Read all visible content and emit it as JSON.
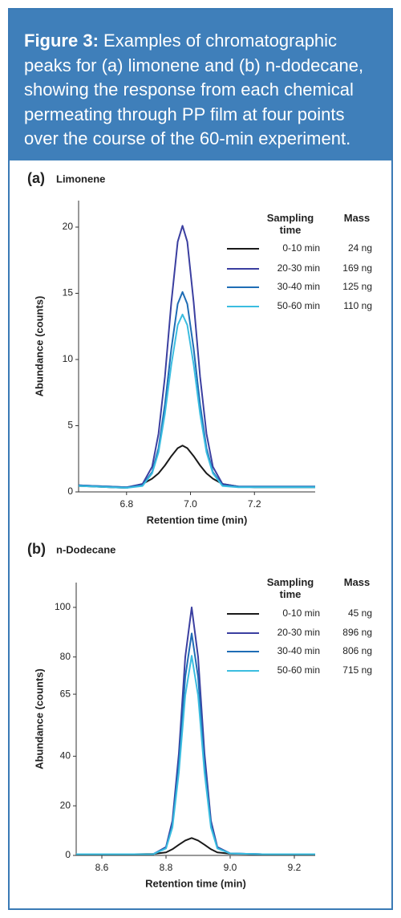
{
  "figure": {
    "label": "Figure 3:",
    "caption": "Examples of chromatographic peaks for (a) limonene and (b) n-dodecane, showing the response from each chemical permeating through PP film at four points over the course of the 60-min experiment."
  },
  "chart_data": [
    {
      "type": "line",
      "panel": "(a)",
      "title": "Limonene",
      "xlabel": "Retention time (min)",
      "ylabel": "Abundance (counts)",
      "legend_headers": [
        "Sampling time",
        "Mass"
      ],
      "x": [
        6.65,
        6.7,
        6.75,
        6.8,
        6.85,
        6.88,
        6.9,
        6.92,
        6.94,
        6.96,
        6.975,
        6.99,
        7.01,
        7.03,
        7.05,
        7.07,
        7.1,
        7.15,
        7.2,
        7.3,
        7.39
      ],
      "xlim": [
        6.65,
        7.39
      ],
      "xticks": [
        6.8,
        {
          "value": 7,
          "label": "7.0"
        },
        7.2
      ],
      "ylim": [
        0,
        22
      ],
      "yticks": [
        0,
        5,
        10,
        15,
        20
      ],
      "series": [
        {
          "name": "0-10 min",
          "mass": "24 ng",
          "color": "#1a1a1a",
          "values": [
            0.45,
            0.4,
            0.35,
            0.3,
            0.6,
            1.0,
            1.4,
            2.0,
            2.7,
            3.3,
            3.5,
            3.3,
            2.7,
            2.0,
            1.4,
            1.0,
            0.6,
            0.4,
            0.35,
            0.35,
            0.35
          ]
        },
        {
          "name": "20-30 min",
          "mass": "169 ng",
          "color": "#3b3fa0",
          "values": [
            0.5,
            0.45,
            0.4,
            0.35,
            0.6,
            1.9,
            4.4,
            8.7,
            14.3,
            18.9,
            20.1,
            18.9,
            14.3,
            8.7,
            4.4,
            1.9,
            0.6,
            0.4,
            0.4,
            0.4,
            0.4
          ]
        },
        {
          "name": "30-40 min",
          "mass": "125 ng",
          "color": "#1f6db5",
          "values": [
            0.5,
            0.45,
            0.4,
            0.35,
            0.5,
            1.5,
            3.3,
            6.6,
            10.8,
            14.2,
            15.1,
            14.2,
            10.8,
            6.6,
            3.3,
            1.5,
            0.5,
            0.4,
            0.4,
            0.4,
            0.4
          ]
        },
        {
          "name": "50-60 min",
          "mass": "110 ng",
          "color": "#3bbde0",
          "values": [
            0.45,
            0.4,
            0.35,
            0.3,
            0.45,
            1.4,
            3.0,
            5.9,
            9.6,
            12.6,
            13.4,
            12.6,
            9.6,
            5.9,
            3.0,
            1.4,
            0.45,
            0.35,
            0.35,
            0.35,
            0.35
          ]
        }
      ]
    },
    {
      "type": "line",
      "panel": "(b)",
      "title": "n-Dodecane",
      "xlabel": "Retention time (min)",
      "ylabel": "Abundance (counts)",
      "legend_headers": [
        "Sampling time",
        "Mass"
      ],
      "x": [
        8.52,
        8.6,
        8.7,
        8.76,
        8.8,
        8.82,
        8.84,
        8.86,
        8.88,
        8.9,
        8.92,
        8.94,
        8.96,
        9.0,
        9.1,
        9.265
      ],
      "xlim": [
        8.52,
        9.265
      ],
      "xticks": [
        8.6,
        8.8,
        {
          "value": 9,
          "label": "9.0"
        },
        9.2
      ],
      "ylim": [
        0,
        110
      ],
      "yticks": [
        0,
        20,
        40,
        65,
        80,
        100
      ],
      "series": [
        {
          "name": "0-10 min",
          "mass": "45 ng",
          "color": "#1a1a1a",
          "values": [
            0.5,
            0.5,
            0.5,
            0.6,
            1.2,
            2.5,
            4.3,
            6,
            7,
            6,
            4.3,
            2.5,
            1.2,
            0.7,
            0.5,
            0.5
          ]
        },
        {
          "name": "20-30 min",
          "mass": "896 ng",
          "color": "#3b3fa0",
          "values": [
            0.5,
            0.5,
            0.5,
            0.5,
            3.4,
            14,
            41,
            80,
            100,
            80,
            41,
            14,
            3.4,
            0.8,
            0.5,
            0.5
          ]
        },
        {
          "name": "30-40 min",
          "mass": "806 ng",
          "color": "#1f6db5",
          "values": [
            0.5,
            0.5,
            0.5,
            0.5,
            3.1,
            12.5,
            37,
            72,
            89.5,
            72,
            37,
            12.5,
            3.1,
            0.8,
            0.5,
            0.5
          ]
        },
        {
          "name": "50-60 min",
          "mass": "715 ng",
          "color": "#3bbde0",
          "values": [
            0.5,
            0.5,
            0.5,
            0.5,
            2.8,
            11.3,
            33.4,
            64.5,
            80.5,
            64.5,
            33.4,
            11.3,
            2.8,
            0.8,
            0.5,
            0.5
          ]
        }
      ]
    }
  ]
}
